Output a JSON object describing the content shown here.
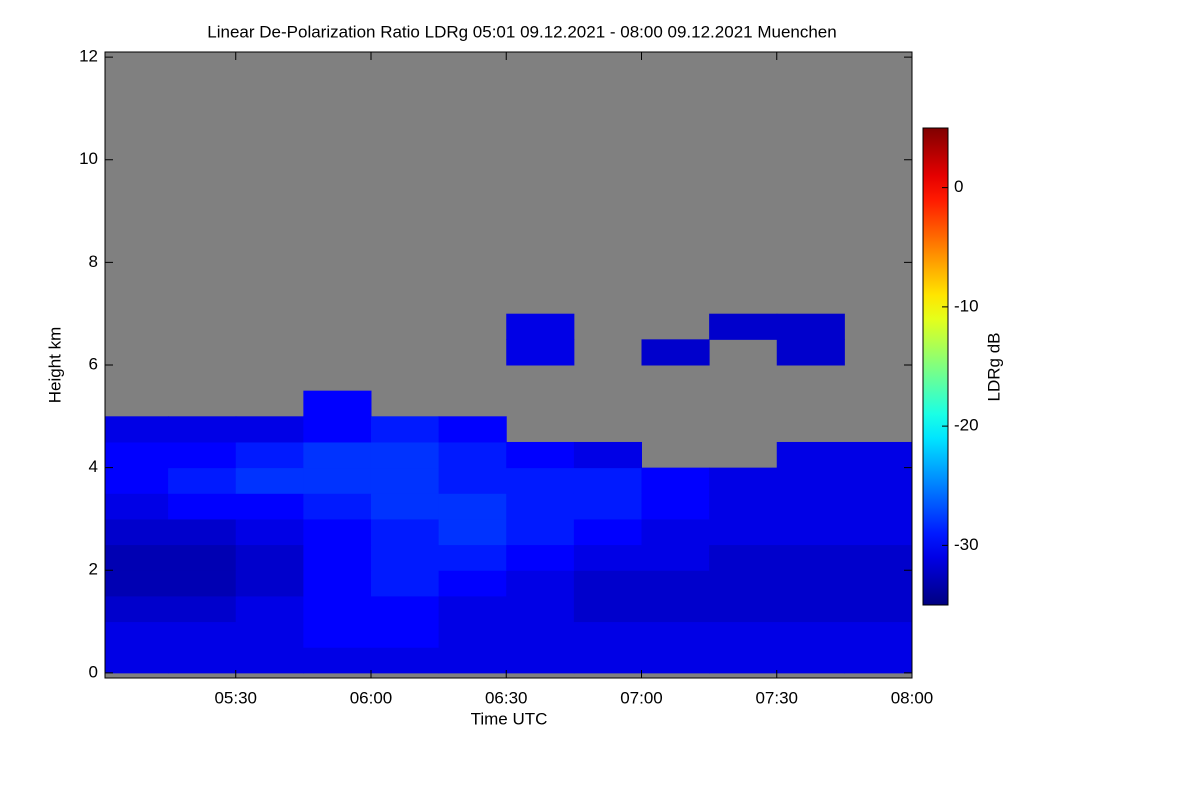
{
  "chart_data": {
    "type": "heatmap",
    "title": "Linear De-Polarization Ratio LDRg   05:01 09.12.2021 - 08:00 09.12.2021 Muenchen",
    "x_label": "Time UTC",
    "y_label": "Height km",
    "colorbar_label": "LDRg dB",
    "colormap": "jet",
    "background": "#808080",
    "xlim": [
      5.0167,
      8.0
    ],
    "ylim": [
      -0.1,
      12.1
    ],
    "clim": [
      -35,
      5
    ],
    "xticks": [
      {
        "value": 5.5,
        "label": "05:30"
      },
      {
        "value": 6,
        "label": "06:00"
      },
      {
        "value": 6.5,
        "label": "06:30"
      },
      {
        "value": 7,
        "label": "07:00"
      },
      {
        "value": 7.5,
        "label": "07:30"
      },
      {
        "value": 8,
        "label": "08:00"
      }
    ],
    "yticks": [
      0,
      2,
      4,
      6,
      8,
      10,
      12
    ],
    "cticks": [
      0,
      -10,
      -20,
      -30
    ],
    "xbins": [
      5.0167,
      5.25,
      5.5,
      5.75,
      6.0,
      6.25,
      6.5,
      6.75,
      7.0,
      7.25,
      7.5,
      7.75,
      8.0
    ],
    "ybins": [
      0,
      0.5,
      1,
      1.5,
      2,
      2.5,
      3,
      3.5,
      4,
      4.5,
      5,
      5.5,
      6,
      6.5,
      7
    ],
    "values": [
      [
        -31,
        -31,
        -31,
        -31,
        -31,
        -31,
        -31,
        -31,
        -31,
        -31,
        -31,
        -31
      ],
      [
        -31,
        -31,
        -31,
        -30,
        -30,
        -31,
        -31,
        -31,
        -31,
        -31,
        -31,
        -31
      ],
      [
        -32,
        -32,
        -31,
        -30,
        -30,
        -31,
        -31,
        -32,
        -32,
        -32,
        -32,
        -32
      ],
      [
        -33,
        -33,
        -32,
        -30,
        -29,
        -30,
        -31,
        -32,
        -32,
        -32,
        -32,
        -32
      ],
      [
        -33,
        -33,
        -32,
        -30,
        -29,
        -29,
        -30,
        -31,
        -31,
        -32,
        -32,
        -32
      ],
      [
        -32,
        -32,
        -31,
        -30,
        -29,
        -28,
        -29,
        -30,
        -31,
        -31,
        -31,
        -31
      ],
      [
        -31,
        -30,
        -30,
        -29,
        -28,
        -28,
        -29,
        -29,
        -30,
        -31,
        -31,
        -31
      ],
      [
        -30,
        -29,
        -28,
        -28,
        -28,
        -29,
        -29,
        -29,
        -30,
        -31,
        -31,
        -31
      ],
      [
        -30,
        -30,
        -29,
        -28,
        -28,
        -29,
        -30,
        -31,
        null,
        null,
        -31,
        -31
      ],
      [
        -31,
        -31,
        -31,
        -30,
        -29,
        -30,
        null,
        null,
        null,
        null,
        null,
        null
      ],
      [
        null,
        null,
        null,
        -30,
        null,
        null,
        null,
        null,
        null,
        null,
        null,
        null
      ],
      [
        null,
        null,
        null,
        null,
        null,
        null,
        null,
        null,
        null,
        null,
        null,
        null
      ],
      [
        null,
        null,
        null,
        null,
        null,
        null,
        -31,
        null,
        -32,
        null,
        -32,
        null
      ],
      [
        null,
        null,
        null,
        null,
        null,
        null,
        -31,
        null,
        null,
        -32,
        -32,
        null
      ]
    ]
  }
}
